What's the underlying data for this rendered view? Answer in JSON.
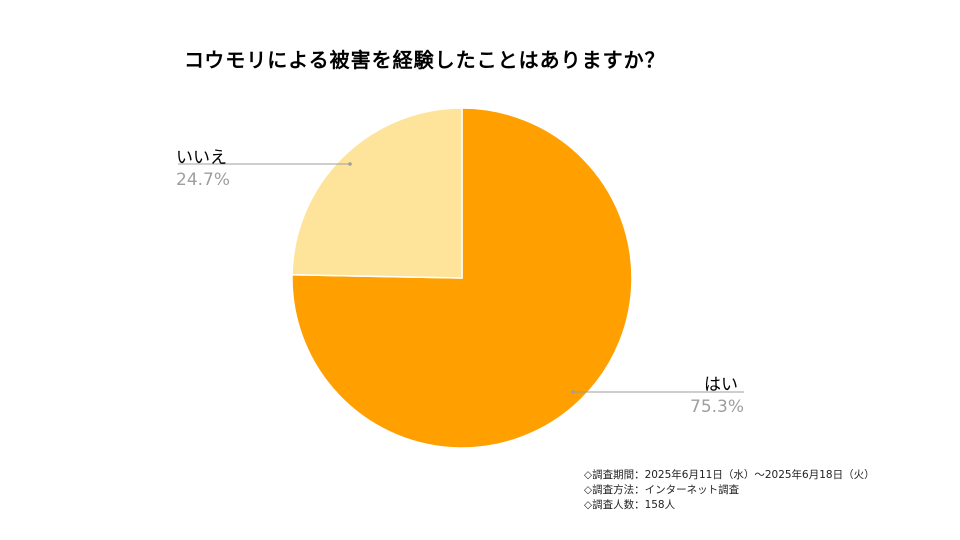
{
  "chart_data": {
    "type": "pie",
    "title": "コウモリによる被害を経験したことはありますか？",
    "slices": [
      {
        "label": "はい",
        "value": 75.3,
        "value_label": "75.3%",
        "color": "#ff9f00"
      },
      {
        "label": "いいえ",
        "value": 24.7,
        "value_label": "24.7%",
        "color": "#fde49a"
      }
    ],
    "start": "12 o'clock",
    "direction": "clockwise",
    "legend": "callout labels with leader lines"
  },
  "notes": [
    "◇調査期間：2025年6月11日（水）～2025年6月18日（火）",
    "◇調査方法：インターネット調査",
    "◇調査人数：158人"
  ]
}
